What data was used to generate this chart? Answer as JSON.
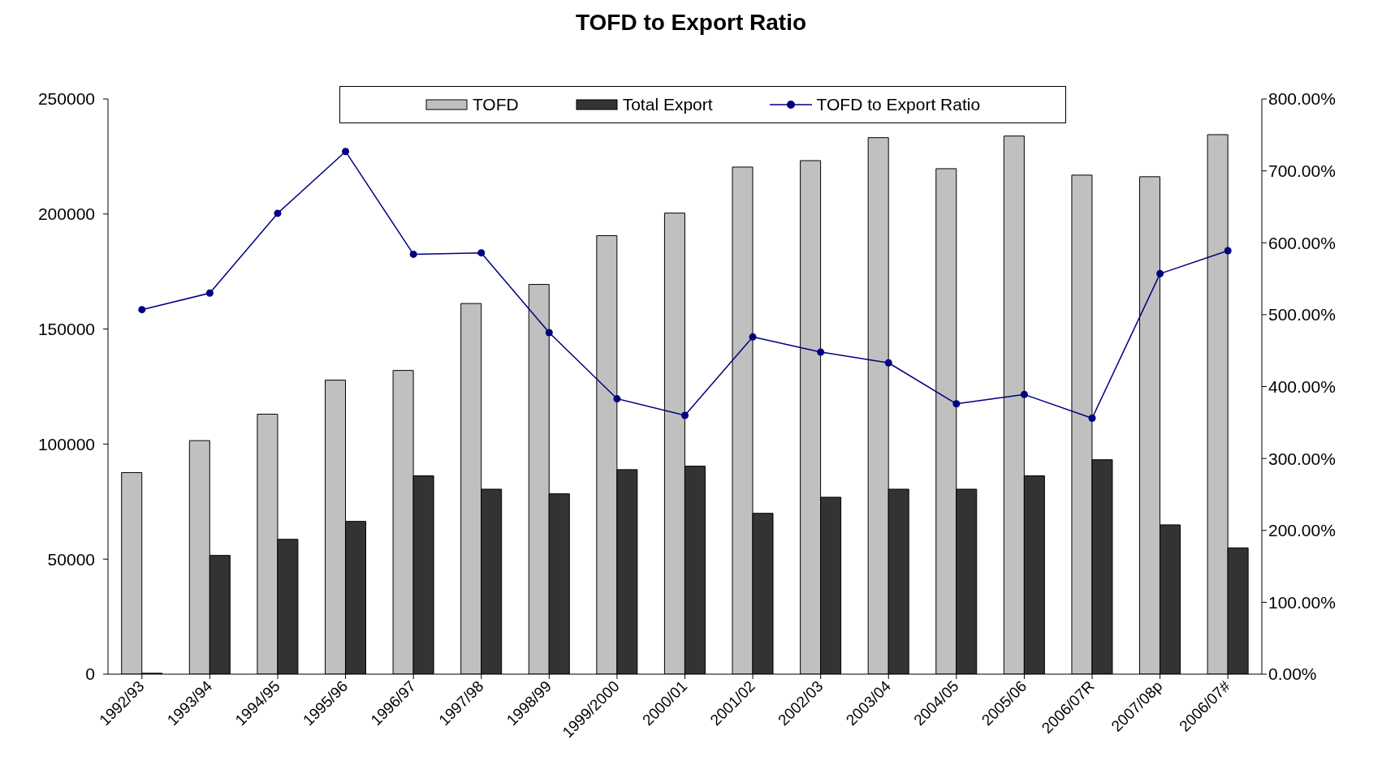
{
  "chart_data": {
    "type": "bar",
    "title": "TOFD to Export Ratio",
    "categories": [
      "1992/93",
      "1993/94",
      "1994/95",
      "1995/96",
      "1996/97",
      "1997/98",
      "1998/99",
      "1999/2000",
      "2000/01",
      "2001/02",
      "2002/03",
      "2003/04",
      "2004/05",
      "2005/06",
      "2006/07R",
      "2007/08p",
      "2006/07#"
    ],
    "series": [
      {
        "name": "TOFD",
        "color": "#c0c0c0",
        "values": [
          87600,
          101500,
          113000,
          127800,
          132000,
          161100,
          169400,
          190600,
          200400,
          220400,
          223200,
          233200,
          219700,
          233900,
          216900,
          216200,
          234500
        ]
      },
      {
        "name": "Total Export",
        "color": "#333333",
        "values": [
          400,
          51600,
          58600,
          66400,
          86200,
          80400,
          78400,
          88900,
          90400,
          69900,
          76900,
          80400,
          80400,
          86200,
          93200,
          64900,
          54900
        ]
      },
      {
        "name": "TOFD to Export Ratio",
        "type": "line",
        "axis": "y2",
        "color": "#000080",
        "values": [
          507,
          530,
          641,
          727,
          584,
          586,
          475,
          383,
          360,
          469,
          448,
          433,
          376,
          389,
          356,
          557,
          589
        ]
      }
    ],
    "ylim": [
      0,
      250000
    ],
    "yticks": [
      0,
      50000,
      100000,
      150000,
      200000,
      250000
    ],
    "y2lim": [
      0,
      800
    ],
    "y2ticks": [
      {
        "value": 0,
        "label": "0.00%"
      },
      {
        "value": 100,
        "label": "100.00%"
      },
      {
        "value": 200,
        "label": "200.00%"
      },
      {
        "value": 300,
        "label": "300.00%"
      },
      {
        "value": 400,
        "label": "400.00%"
      },
      {
        "value": 500,
        "label": "500.00%"
      },
      {
        "value": 600,
        "label": "600.00%"
      },
      {
        "value": 700,
        "label": "700.00%"
      },
      {
        "value": 800,
        "label": "800.00%"
      }
    ],
    "legend": "top",
    "marker": "circle"
  }
}
